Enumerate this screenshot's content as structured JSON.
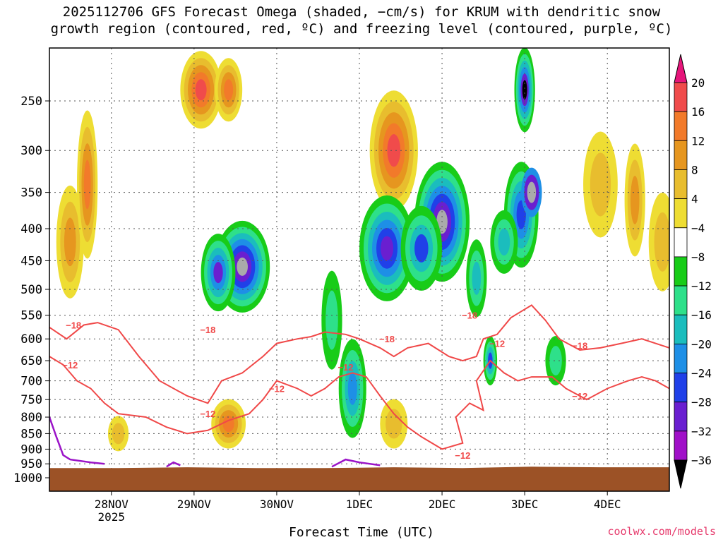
{
  "chart_data": {
    "type": "heatmap",
    "title_line1": "2025112706 GFS Forecast Omega (shaded, −cm/s) for KRUM with dendritic snow",
    "title_line2": "growth region (contoured, red, ºC) and freezing level (contoured, purple, ºC)",
    "xlabel": "Forecast Time (UTC)",
    "ylabel": "",
    "y_ticks": [
      "250",
      "300",
      "350",
      "400",
      "450",
      "500",
      "550",
      "600",
      "650",
      "700",
      "750",
      "800",
      "850",
      "900",
      "950",
      "1000"
    ],
    "y_tick_values": [
      250,
      300,
      350,
      400,
      450,
      500,
      550,
      600,
      650,
      700,
      750,
      800,
      850,
      900,
      950,
      1000
    ],
    "ylim": [
      200,
      1000
    ],
    "x_ticks": [
      {
        "label": "28NOV",
        "sub": "2025",
        "hour": 18
      },
      {
        "label": "29NOV",
        "sub": "",
        "hour": 42
      },
      {
        "label": "30NOV",
        "sub": "",
        "hour": 66
      },
      {
        "label": "1DEC",
        "sub": "",
        "hour": 90
      },
      {
        "label": "2DEC",
        "sub": "",
        "hour": 114
      },
      {
        "label": "3DEC",
        "sub": "",
        "hour": 138
      },
      {
        "label": "4DEC",
        "sub": "",
        "hour": 162
      }
    ],
    "xlim_hours": [
      0,
      180
    ],
    "colorbar": {
      "labels": [
        "20",
        "16",
        "12",
        "8",
        "4",
        "−4",
        "−8",
        "−12",
        "−16",
        "−20",
        "−24",
        "−28",
        "−32",
        "−36"
      ],
      "levels": [
        20,
        16,
        12,
        8,
        4,
        -4,
        -8,
        -12,
        -16,
        -20,
        -24,
        -28,
        -32,
        -36
      ],
      "colors": [
        "#f04b4b",
        "#f27a2a",
        "#e6961f",
        "#e8bd2e",
        "#eedd33",
        "#ffffff",
        "#18cc18",
        "#2ee08a",
        "#1bbdbd",
        "#1e8fe6",
        "#2040e8",
        "#6a1fd0",
        "#a010c8",
        "#aaaaaa",
        "#000000"
      ],
      "top_arrow_color": "#e6157a"
    },
    "contour_labels": [
      "−18",
      "−12",
      "−18",
      "−12",
      "−12",
      "−18",
      "−12",
      "−18",
      "−12",
      "−18",
      "−12",
      "−12"
    ],
    "annotation": "coolwx.com/models"
  }
}
